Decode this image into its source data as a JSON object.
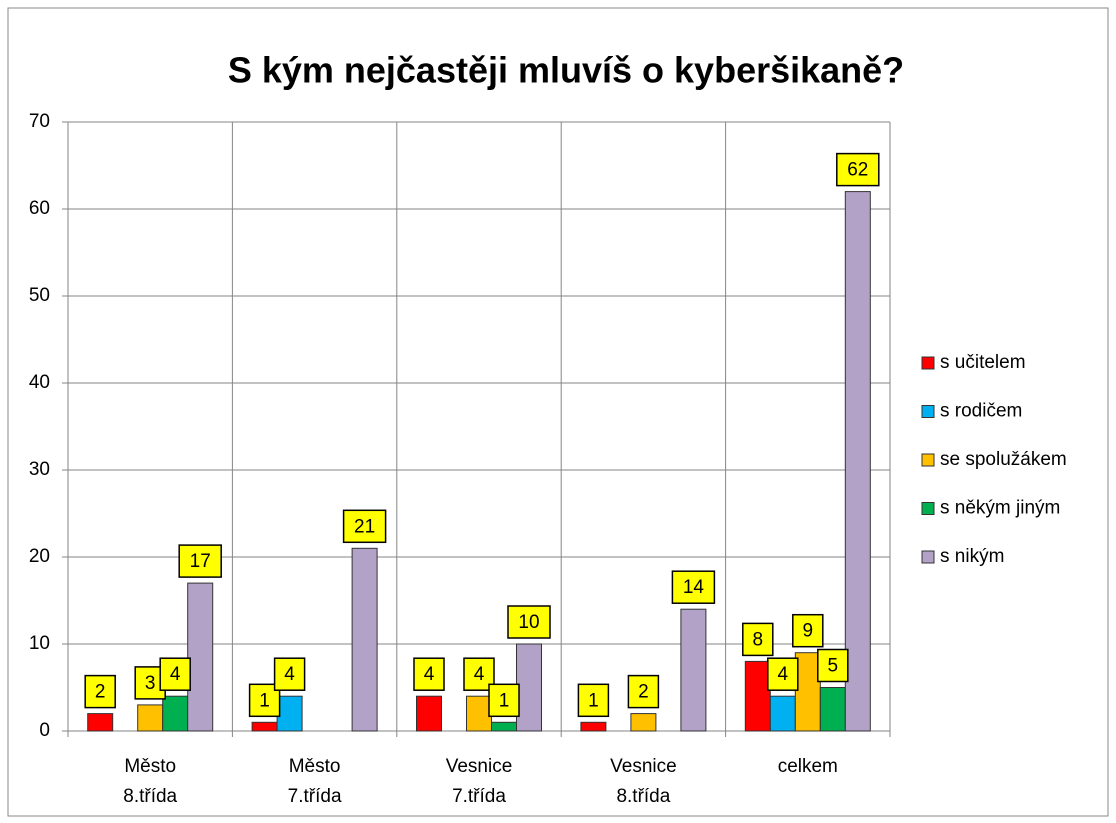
{
  "chart_data": {
    "type": "bar",
    "title": "S kým nejčastěji mluvíš o kyberšikaně?",
    "categories": [
      [
        "Město",
        "8.třída"
      ],
      [
        "Město",
        "7.třída"
      ],
      [
        "Vesnice",
        "7.třída"
      ],
      [
        "Vesnice",
        "8.třída"
      ],
      [
        "celkem"
      ]
    ],
    "series": [
      {
        "name": "s učitelem",
        "color": "#ff0000",
        "values": [
          2,
          1,
          4,
          1,
          8
        ]
      },
      {
        "name": "s rodičem",
        "color": "#00b0f0",
        "values": [
          null,
          4,
          null,
          null,
          4
        ]
      },
      {
        "name": "se spolužákem",
        "color": "#ffc000",
        "values": [
          3,
          null,
          4,
          2,
          9
        ]
      },
      {
        "name": "s někým jiným",
        "color": "#00b050",
        "values": [
          4,
          null,
          1,
          null,
          5
        ]
      },
      {
        "name": "s nikým",
        "color": "#b3a2c7",
        "values": [
          17,
          21,
          10,
          14,
          62
        ]
      }
    ],
    "ylim": [
      0,
      70
    ],
    "yticks": [
      0,
      10,
      20,
      30,
      40,
      50,
      60,
      70
    ],
    "grid": true,
    "legend": "right",
    "label_color": "#ffff00"
  }
}
